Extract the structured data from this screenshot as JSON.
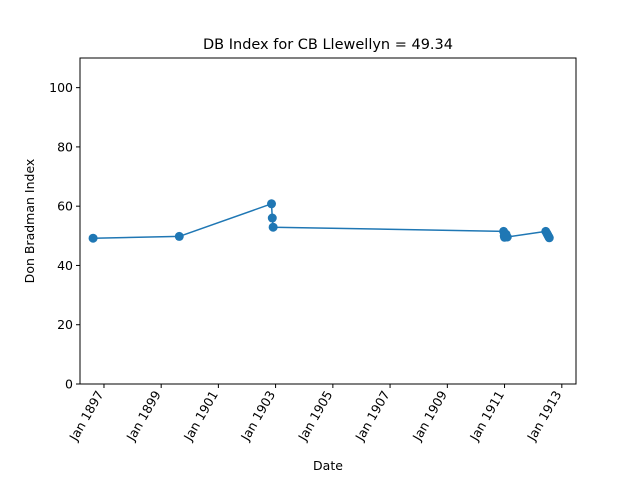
{
  "chart_data": {
    "type": "line",
    "title": "DB Index for CB Llewellyn = 49.34",
    "xlabel": "Date",
    "ylabel": "Don Bradman Index",
    "ylim": [
      0,
      110
    ],
    "xlim": [
      "1896-03-01",
      "1913-07-01"
    ],
    "y_ticks": [
      0,
      20,
      40,
      60,
      80,
      100
    ],
    "x_ticks": [
      {
        "date": "1897-01-01",
        "label": "Jan 1897"
      },
      {
        "date": "1899-01-01",
        "label": "Jan 1899"
      },
      {
        "date": "1901-01-01",
        "label": "Jan 1901"
      },
      {
        "date": "1903-01-01",
        "label": "Jan 1903"
      },
      {
        "date": "1905-01-01",
        "label": "Jan 1905"
      },
      {
        "date": "1907-01-01",
        "label": "Jan 1907"
      },
      {
        "date": "1909-01-01",
        "label": "Jan 1909"
      },
      {
        "date": "1911-01-01",
        "label": "Jan 1911"
      },
      {
        "date": "1913-01-01",
        "label": "Jan 1913"
      }
    ],
    "grid": false,
    "series": [
      {
        "color": "#1f77b4",
        "points": [
          {
            "x": "1896-08-15",
            "y": 49.2
          },
          {
            "x": "1899-08-20",
            "y": 49.8
          },
          {
            "x": "1902-11-10",
            "y": 60.8
          },
          {
            "x": "1902-11-20",
            "y": 56.0
          },
          {
            "x": "1902-12-01",
            "y": 52.9
          },
          {
            "x": "1910-12-20",
            "y": 51.5
          },
          {
            "x": "1910-12-28",
            "y": 50.0
          },
          {
            "x": "1911-01-01",
            "y": 49.5
          },
          {
            "x": "1911-01-20",
            "y": 50.5
          },
          {
            "x": "1911-02-05",
            "y": 49.6
          },
          {
            "x": "1912-06-10",
            "y": 51.5
          },
          {
            "x": "1912-06-25",
            "y": 50.8
          },
          {
            "x": "1912-07-05",
            "y": 50.3
          },
          {
            "x": "1912-07-15",
            "y": 49.8
          },
          {
            "x": "1912-07-25",
            "y": 49.34
          }
        ]
      }
    ]
  }
}
